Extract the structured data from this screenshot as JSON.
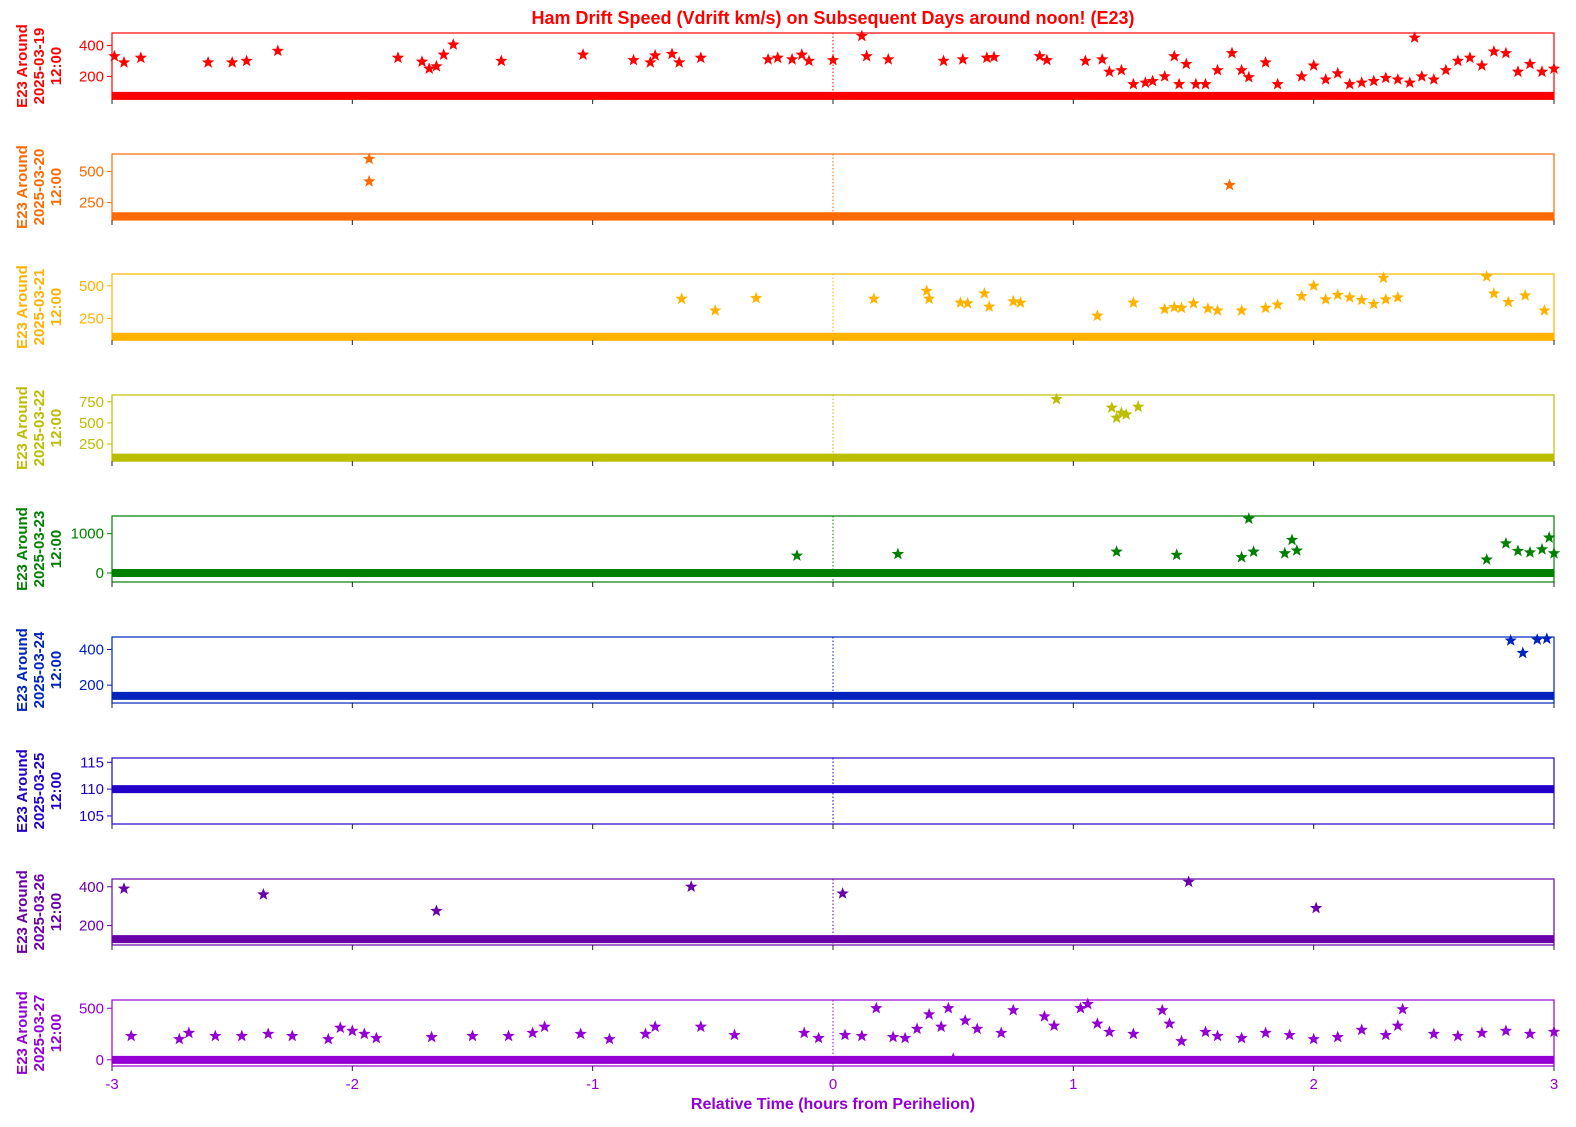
{
  "chart_data": {
    "type": "scatter",
    "title": "Ham Drift Speed (Vdrift km/s) on Subsequent Days around noon! (E23)",
    "xlabel": "Relative Time (hours from Perihelion)",
    "xlim": [
      -3,
      3
    ],
    "x_ticks": [
      "-3",
      "-2",
      "-1",
      "0",
      "1",
      "2",
      "3"
    ],
    "title_color": "#ff0000",
    "xlabel_color": "#9400d3",
    "marker": "star",
    "reference_line_x": 0,
    "panels": [
      {
        "ylabel_lines": [
          "E23 Around",
          "2025-03-19",
          "12:00"
        ],
        "color": "#ff0000",
        "ylim": [
          55,
          480
        ],
        "y_ticks": [
          "200",
          "400"
        ],
        "baseline_y": 75,
        "points": [
          [
            -2.99,
            330
          ],
          [
            -2.95,
            290
          ],
          [
            -2.88,
            320
          ],
          [
            -2.6,
            290
          ],
          [
            -2.5,
            290
          ],
          [
            -2.44,
            300
          ],
          [
            -2.31,
            365
          ],
          [
            -1.81,
            320
          ],
          [
            -1.71,
            295
          ],
          [
            -1.68,
            250
          ],
          [
            -1.65,
            265
          ],
          [
            -1.62,
            340
          ],
          [
            -1.58,
            405
          ],
          [
            -1.38,
            300
          ],
          [
            -1.04,
            340
          ],
          [
            -0.83,
            305
          ],
          [
            -0.76,
            290
          ],
          [
            -0.74,
            335
          ],
          [
            -0.67,
            345
          ],
          [
            -0.64,
            290
          ],
          [
            -0.55,
            320
          ],
          [
            -0.27,
            310
          ],
          [
            -0.23,
            320
          ],
          [
            -0.17,
            310
          ],
          [
            -0.13,
            340
          ],
          [
            -0.1,
            300
          ],
          [
            0.0,
            305
          ],
          [
            0.12,
            460
          ],
          [
            0.14,
            330
          ],
          [
            0.23,
            310
          ],
          [
            0.46,
            300
          ],
          [
            0.54,
            310
          ],
          [
            0.64,
            320
          ],
          [
            0.67,
            325
          ],
          [
            0.86,
            330
          ],
          [
            0.89,
            305
          ],
          [
            1.05,
            300
          ],
          [
            1.12,
            310
          ],
          [
            1.15,
            230
          ],
          [
            1.2,
            240
          ],
          [
            1.25,
            150
          ],
          [
            1.3,
            160
          ],
          [
            1.33,
            170
          ],
          [
            1.38,
            200
          ],
          [
            1.42,
            330
          ],
          [
            1.44,
            150
          ],
          [
            1.47,
            280
          ],
          [
            1.51,
            150
          ],
          [
            1.55,
            150
          ],
          [
            1.6,
            240
          ],
          [
            1.66,
            350
          ],
          [
            1.7,
            240
          ],
          [
            1.73,
            195
          ],
          [
            1.8,
            290
          ],
          [
            1.85,
            150
          ],
          [
            1.95,
            200
          ],
          [
            2.0,
            270
          ],
          [
            2.05,
            180
          ],
          [
            2.1,
            220
          ],
          [
            2.15,
            150
          ],
          [
            2.2,
            160
          ],
          [
            2.25,
            170
          ],
          [
            2.3,
            190
          ],
          [
            2.35,
            180
          ],
          [
            2.4,
            160
          ],
          [
            2.42,
            450
          ],
          [
            2.45,
            200
          ],
          [
            2.5,
            180
          ],
          [
            2.55,
            240
          ],
          [
            2.6,
            300
          ],
          [
            2.65,
            320
          ],
          [
            2.7,
            270
          ],
          [
            2.75,
            360
          ],
          [
            2.8,
            350
          ],
          [
            2.85,
            230
          ],
          [
            2.9,
            280
          ],
          [
            2.95,
            230
          ],
          [
            3.0,
            250
          ]
        ]
      },
      {
        "ylabel_lines": [
          "E23 Around",
          "2025-03-20",
          "12:00"
        ],
        "color": "#ff6a00",
        "ylim": [
          110,
          640
        ],
        "y_ticks": [
          "250",
          "500"
        ],
        "baseline_y": 140,
        "points": [
          [
            -1.93,
            600
          ],
          [
            -1.93,
            420
          ],
          [
            1.65,
            390
          ]
        ]
      },
      {
        "ylabel_lines": [
          "E23 Around",
          "2025-03-21",
          "12:00"
        ],
        "color": "#ffb300",
        "ylim": [
          85,
          590
        ],
        "y_ticks": [
          "250",
          "500"
        ],
        "baseline_y": 110,
        "points": [
          [
            -0.63,
            400
          ],
          [
            -0.49,
            310
          ],
          [
            -0.32,
            405
          ],
          [
            0.17,
            400
          ],
          [
            0.39,
            460
          ],
          [
            0.4,
            400
          ],
          [
            0.53,
            370
          ],
          [
            0.56,
            365
          ],
          [
            0.63,
            440
          ],
          [
            0.65,
            340
          ],
          [
            0.75,
            380
          ],
          [
            0.78,
            370
          ],
          [
            1.1,
            270
          ],
          [
            1.25,
            370
          ],
          [
            1.38,
            320
          ],
          [
            1.42,
            335
          ],
          [
            1.45,
            330
          ],
          [
            1.5,
            365
          ],
          [
            1.56,
            325
          ],
          [
            1.6,
            310
          ],
          [
            1.7,
            310
          ],
          [
            1.8,
            330
          ],
          [
            1.85,
            355
          ],
          [
            1.95,
            420
          ],
          [
            2.0,
            500
          ],
          [
            2.05,
            395
          ],
          [
            2.1,
            430
          ],
          [
            2.15,
            410
          ],
          [
            2.2,
            390
          ],
          [
            2.25,
            360
          ],
          [
            2.3,
            395
          ],
          [
            2.35,
            410
          ],
          [
            2.29,
            560
          ],
          [
            2.72,
            570
          ],
          [
            2.75,
            440
          ],
          [
            2.81,
            375
          ],
          [
            2.88,
            425
          ],
          [
            2.96,
            310
          ]
        ]
      },
      {
        "ylabel_lines": [
          "E23 Around",
          "2025-03-22",
          "12:00"
        ],
        "color": "#bdbd00",
        "ylim": [
          50,
          830
        ],
        "y_ticks": [
          "250",
          "500",
          "750"
        ],
        "baseline_y": 90,
        "points": [
          [
            0.93,
            780
          ],
          [
            1.16,
            680
          ],
          [
            1.18,
            560
          ],
          [
            1.2,
            620
          ],
          [
            1.22,
            600
          ],
          [
            1.27,
            690
          ]
        ]
      },
      {
        "ylabel_lines": [
          "E23 Around",
          "2025-03-23",
          "12:00"
        ],
        "color": "#008000",
        "ylim": [
          -230,
          1450
        ],
        "y_ticks": [
          "0",
          "1000"
        ],
        "baseline_y": 0,
        "points": [
          [
            -0.15,
            440
          ],
          [
            0.27,
            480
          ],
          [
            1.18,
            540
          ],
          [
            1.43,
            460
          ],
          [
            1.73,
            1380
          ],
          [
            1.75,
            540
          ],
          [
            1.7,
            400
          ],
          [
            1.88,
            500
          ],
          [
            1.91,
            840
          ],
          [
            1.93,
            570
          ],
          [
            2.72,
            340
          ],
          [
            2.8,
            750
          ],
          [
            2.85,
            560
          ],
          [
            2.9,
            520
          ],
          [
            2.95,
            600
          ],
          [
            2.98,
            900
          ],
          [
            3.0,
            500
          ]
        ]
      },
      {
        "ylabel_lines": [
          "E23 Around",
          "2025-03-24",
          "12:00"
        ],
        "color": "#0023bd",
        "ylim": [
          100,
          470
        ],
        "y_ticks": [
          "200",
          "400"
        ],
        "baseline_y": 140,
        "points": [
          [
            2.82,
            450
          ],
          [
            2.87,
            380
          ],
          [
            2.93,
            455
          ],
          [
            2.97,
            460
          ]
        ]
      },
      {
        "ylabel_lines": [
          "E23 Around",
          "2025-03-25",
          "12:00"
        ],
        "color": "#2200c8",
        "ylim": [
          103.5,
          115.8
        ],
        "y_ticks": [
          "105",
          "110",
          "115"
        ],
        "baseline_y": 110,
        "points": []
      },
      {
        "ylabel_lines": [
          "E23 Around",
          "2025-03-26",
          "12:00"
        ],
        "color": "#6a00a8",
        "ylim": [
          100,
          440
        ],
        "y_ticks": [
          "200",
          "400"
        ],
        "baseline_y": 130,
        "points": [
          [
            -2.95,
            390
          ],
          [
            -2.37,
            360
          ],
          [
            -1.65,
            275
          ],
          [
            -0.59,
            400
          ],
          [
            0.04,
            365
          ],
          [
            1.48,
            425
          ],
          [
            2.01,
            290
          ]
        ]
      },
      {
        "ylabel_lines": [
          "E23 Around",
          "2025-03-27",
          "12:00"
        ],
        "color": "#9400d3",
        "ylim": [
          -60,
          580
        ],
        "y_ticks": [
          "0",
          "500"
        ],
        "baseline_y": 0,
        "points": [
          [
            -2.92,
            230
          ],
          [
            -2.72,
            200
          ],
          [
            -2.68,
            260
          ],
          [
            -2.57,
            230
          ],
          [
            -2.46,
            230
          ],
          [
            -2.35,
            250
          ],
          [
            -2.25,
            230
          ],
          [
            -2.1,
            200
          ],
          [
            -2.05,
            310
          ],
          [
            -2.0,
            280
          ],
          [
            -1.95,
            250
          ],
          [
            -1.9,
            210
          ],
          [
            -1.67,
            220
          ],
          [
            -1.5,
            230
          ],
          [
            -1.35,
            230
          ],
          [
            -1.25,
            260
          ],
          [
            -1.2,
            320
          ],
          [
            -1.05,
            250
          ],
          [
            -0.93,
            200
          ],
          [
            -0.78,
            250
          ],
          [
            -0.74,
            320
          ],
          [
            -0.55,
            320
          ],
          [
            -0.41,
            240
          ],
          [
            -0.12,
            260
          ],
          [
            -0.06,
            210
          ],
          [
            0.05,
            240
          ],
          [
            0.12,
            230
          ],
          [
            0.18,
            500
          ],
          [
            0.25,
            220
          ],
          [
            0.3,
            210
          ],
          [
            0.35,
            300
          ],
          [
            0.4,
            440
          ],
          [
            0.45,
            320
          ],
          [
            0.48,
            500
          ],
          [
            0.5,
            10
          ],
          [
            0.55,
            380
          ],
          [
            0.6,
            300
          ],
          [
            0.7,
            260
          ],
          [
            0.75,
            480
          ],
          [
            0.88,
            420
          ],
          [
            0.92,
            330
          ],
          [
            1.03,
            500
          ],
          [
            1.06,
            540
          ],
          [
            1.1,
            350
          ],
          [
            1.15,
            270
          ],
          [
            1.25,
            250
          ],
          [
            1.37,
            480
          ],
          [
            1.4,
            350
          ],
          [
            1.45,
            180
          ],
          [
            1.55,
            270
          ],
          [
            1.6,
            230
          ],
          [
            1.7,
            210
          ],
          [
            1.8,
            260
          ],
          [
            1.9,
            240
          ],
          [
            2.0,
            200
          ],
          [
            2.1,
            220
          ],
          [
            2.2,
            290
          ],
          [
            2.3,
            240
          ],
          [
            2.35,
            330
          ],
          [
            2.37,
            490
          ],
          [
            2.5,
            250
          ],
          [
            2.6,
            230
          ],
          [
            2.7,
            260
          ],
          [
            2.8,
            280
          ],
          [
            2.9,
            250
          ],
          [
            3.0,
            270
          ]
        ]
      }
    ]
  }
}
